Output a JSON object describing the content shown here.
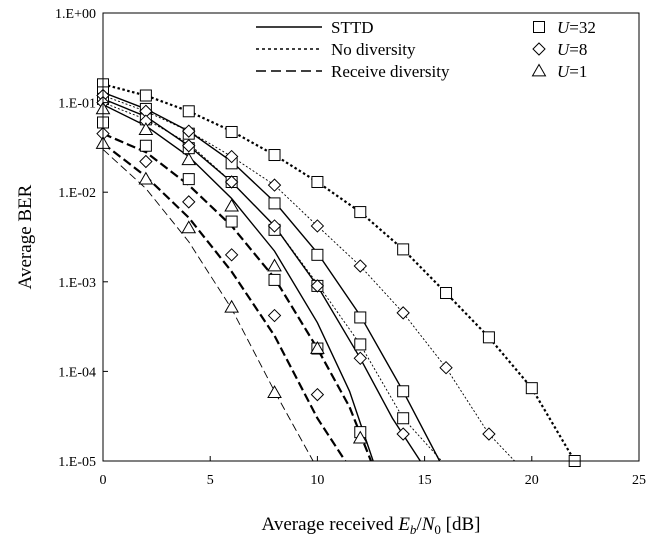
{
  "chart_data": {
    "type": "line",
    "title": "",
    "xlabel": "Average received E_b/N_0 [dB]",
    "xlabel_parts": {
      "prefix": "Average received ",
      "e": "E",
      "b": "b",
      "slash": "/",
      "n": "N",
      "zero": "0",
      "suffix": " [dB]"
    },
    "ylabel": "Average BER",
    "xlim": [
      0,
      25
    ],
    "ylim": [
      1e-05,
      1
    ],
    "yscale": "log",
    "grid": false,
    "x_ticks": [
      {
        "value": 0,
        "label": "0"
      },
      {
        "value": 5,
        "label": "5"
      },
      {
        "value": 10,
        "label": "10"
      },
      {
        "value": 15,
        "label": "15"
      },
      {
        "value": 20,
        "label": "20"
      },
      {
        "value": 25,
        "label": "25"
      }
    ],
    "y_ticks": [
      {
        "value": 1,
        "label": "1.E+00"
      },
      {
        "value": 0.1,
        "label": "1.E-01"
      },
      {
        "value": 0.01,
        "label": "1.E-02"
      },
      {
        "value": 0.001,
        "label": "1.E-03"
      },
      {
        "value": 0.0001,
        "label": "1.E-04"
      },
      {
        "value": 1e-05,
        "label": "1.E-05"
      }
    ],
    "legend_placement": "top-right",
    "legend_lines": [
      {
        "label": "STTD",
        "style": "solid"
      },
      {
        "label": "No diversity",
        "style": "dotted"
      },
      {
        "label": "Receive diversity",
        "style": "dashed"
      }
    ],
    "legend_markers": [
      {
        "label_prefix": "U",
        "label_suffix": "=32",
        "marker": "square"
      },
      {
        "label_prefix": "U",
        "label_suffix": "=8",
        "marker": "diamond"
      },
      {
        "label_prefix": "U",
        "label_suffix": "=1",
        "marker": "triangle"
      }
    ],
    "theory_curves": [
      {
        "style": "dotted",
        "weight": "bold",
        "x": [
          0,
          2,
          4,
          6,
          8,
          10,
          12,
          14,
          16,
          18,
          20,
          22
        ],
        "y": [
          0.16,
          0.12,
          0.08,
          0.048,
          0.026,
          0.013,
          0.006,
          0.0023,
          0.00075,
          0.00024,
          6.5e-05,
          1e-05
        ]
      },
      {
        "style": "dotted",
        "weight": "light",
        "x": [
          0,
          2,
          4,
          6,
          8,
          10,
          12,
          14,
          16,
          18,
          19.2
        ],
        "y": [
          0.12,
          0.08,
          0.048,
          0.025,
          0.012,
          0.0042,
          0.0015,
          0.00045,
          0.00011,
          2e-05,
          1e-05
        ]
      },
      {
        "style": "dotted",
        "weight": "light",
        "x": [
          0,
          2,
          4,
          6,
          8,
          10,
          12,
          14,
          15.8
        ],
        "y": [
          0.1,
          0.065,
          0.035,
          0.013,
          0.0042,
          0.00095,
          0.0002,
          3e-05,
          1e-05
        ]
      },
      {
        "style": "solid",
        "weight": "normal",
        "x": [
          0,
          2,
          4,
          6,
          8,
          10,
          12,
          14,
          15.7
        ],
        "y": [
          0.13,
          0.085,
          0.048,
          0.022,
          0.0078,
          0.0021,
          0.00042,
          6e-05,
          1e-05
        ]
      },
      {
        "style": "solid",
        "weight": "normal",
        "x": [
          0,
          2,
          4,
          6,
          8,
          10,
          12,
          13.5,
          14.8
        ],
        "y": [
          0.11,
          0.07,
          0.033,
          0.013,
          0.0042,
          0.0009,
          0.00014,
          3e-05,
          1e-05
        ]
      },
      {
        "style": "solid",
        "weight": "normal",
        "x": [
          0,
          2,
          4,
          6,
          8,
          10,
          11.5,
          12.6
        ],
        "y": [
          0.095,
          0.055,
          0.025,
          0.0085,
          0.0022,
          0.00035,
          6e-05,
          1e-05
        ]
      },
      {
        "style": "dashed",
        "weight": "bold",
        "x": [
          0,
          2,
          4,
          6,
          8,
          10,
          11.5,
          12.5
        ],
        "y": [
          0.045,
          0.028,
          0.012,
          0.0042,
          0.0011,
          0.00018,
          4e-05,
          1e-05
        ]
      },
      {
        "style": "dashed",
        "weight": "bold",
        "x": [
          0,
          2,
          4,
          6,
          8,
          10,
          11.3
        ],
        "y": [
          0.035,
          0.015,
          0.0052,
          0.0013,
          0.00025,
          3e-05,
          1e-05
        ]
      },
      {
        "style": "dashed",
        "weight": "light",
        "x": [
          0,
          2,
          4,
          6,
          8,
          9.8
        ],
        "y": [
          0.03,
          0.011,
          0.0028,
          0.0005,
          6e-05,
          1e-05
        ]
      }
    ],
    "points": [
      {
        "marker": "square",
        "x": [
          0,
          2,
          4,
          6,
          8,
          10,
          12,
          14,
          16,
          18,
          20,
          22
        ],
        "y": [
          0.16,
          0.12,
          0.08,
          0.047,
          0.026,
          0.013,
          0.006,
          0.0023,
          0.00075,
          0.00024,
          6.5e-05,
          1e-05
        ]
      },
      {
        "marker": "square",
        "x": [
          0,
          2,
          4,
          6,
          8,
          10,
          12,
          14
        ],
        "y": [
          0.13,
          0.085,
          0.045,
          0.021,
          0.0075,
          0.002,
          0.0004,
          6e-05
        ]
      },
      {
        "marker": "square",
        "x": [
          0,
          2,
          4,
          6,
          8,
          10,
          12,
          14
        ],
        "y": [
          0.11,
          0.065,
          0.031,
          0.013,
          0.0038,
          0.0009,
          0.0002,
          3e-05
        ]
      },
      {
        "marker": "square",
        "x": [
          0,
          2,
          4,
          6,
          8,
          10,
          12
        ],
        "y": [
          0.06,
          0.033,
          0.014,
          0.0047,
          0.00105,
          0.00018,
          2.1e-05
        ]
      },
      {
        "marker": "diamond",
        "x": [
          0,
          2,
          4,
          6,
          8,
          10,
          12,
          14,
          16,
          18
        ],
        "y": [
          0.12,
          0.08,
          0.048,
          0.025,
          0.012,
          0.0042,
          0.0015,
          0.00045,
          0.00011,
          2e-05
        ]
      },
      {
        "marker": "diamond",
        "x": [
          0,
          2,
          4,
          6,
          8,
          10,
          12,
          14
        ],
        "y": [
          0.1,
          0.062,
          0.033,
          0.013,
          0.0042,
          0.0009,
          0.00014,
          2e-05
        ]
      },
      {
        "marker": "diamond",
        "x": [
          0,
          2,
          4,
          6,
          8,
          10
        ],
        "y": [
          0.045,
          0.022,
          0.0078,
          0.002,
          0.00042,
          5.5e-05
        ]
      },
      {
        "marker": "triangle",
        "x": [
          0,
          2,
          4,
          6,
          8,
          10,
          12
        ],
        "y": [
          0.085,
          0.05,
          0.023,
          0.007,
          0.0015,
          0.00018,
          1.8e-05
        ]
      },
      {
        "marker": "triangle",
        "x": [
          0,
          2,
          4,
          6,
          8
        ],
        "y": [
          0.035,
          0.014,
          0.004,
          0.00052,
          5.8e-05
        ]
      }
    ]
  }
}
